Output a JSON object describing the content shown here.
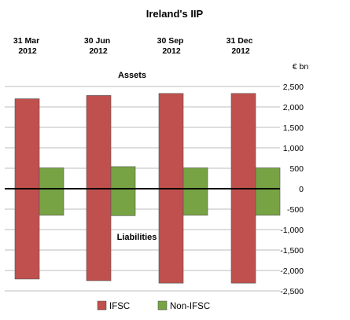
{
  "chart_data": {
    "type": "bar",
    "title": "Ireland's IIP",
    "unit": "€ bn",
    "categories": [
      {
        "line1": "31 Mar",
        "line2": "2012"
      },
      {
        "line1": "30 Jun",
        "line2": "2012"
      },
      {
        "line1": "30 Sep",
        "line2": "2012"
      },
      {
        "line1": "31 Dec",
        "line2": "2012"
      }
    ],
    "annotations": {
      "assets": "Assets",
      "liabilities": "Liabilities"
    },
    "series": [
      {
        "name": "IFSC",
        "color": "#C0504D",
        "assets": [
          2200,
          2280,
          2330,
          2330
        ],
        "liabilities": [
          -2210,
          -2250,
          -2310,
          -2310
        ]
      },
      {
        "name": "Non-IFSC",
        "color": "#77A344",
        "assets": [
          510,
          540,
          510,
          510
        ],
        "liabilities": [
          -650,
          -660,
          -650,
          -650
        ]
      }
    ],
    "ylim": [
      -2500,
      2500
    ],
    "yticks": [
      2500,
      2000,
      1500,
      1000,
      500,
      0,
      -500,
      -1000,
      -1500,
      -2000,
      -2500
    ],
    "ytick_labels": [
      "2,500",
      "2,000",
      "1,500",
      "1,000",
      "500",
      "0",
      "-500",
      "-1,000",
      "-1,500",
      "-2,000",
      "-2,500"
    ],
    "grid": true,
    "legend_position": "bottom"
  }
}
